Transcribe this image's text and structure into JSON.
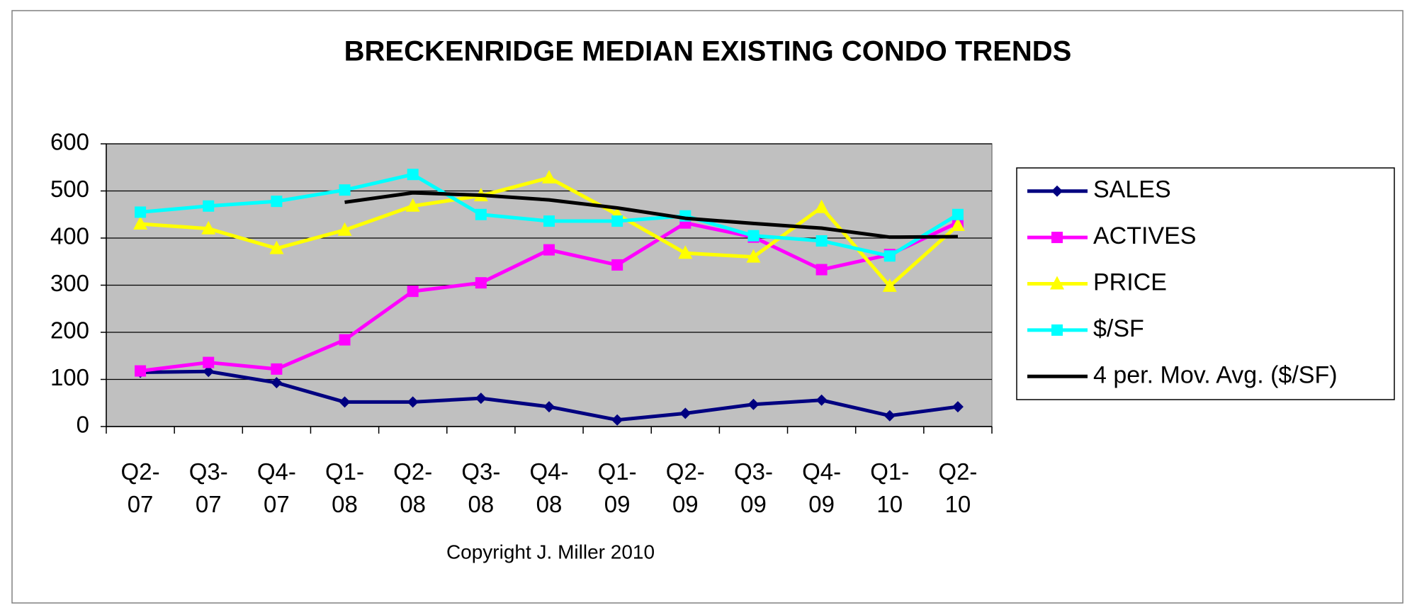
{
  "chart_data": {
    "type": "line",
    "title": "BRECKENRIDGE MEDIAN  EXISTING CONDO TRENDS",
    "annotation": "Copyright J. Miller 2010",
    "categories": [
      "Q2-07",
      "Q3-07",
      "Q4-07",
      "Q1-08",
      "Q2-08",
      "Q3-08",
      "Q4-08",
      "Q1-09",
      "Q2-09",
      "Q3-09",
      "Q4-09",
      "Q1-10",
      "Q2-10"
    ],
    "series": [
      {
        "name": "SALES",
        "color": "#000080",
        "marker": "diamond",
        "values": [
          115,
          117,
          93,
          52,
          52,
          60,
          42,
          14,
          28,
          47,
          56,
          23,
          42
        ]
      },
      {
        "name": "ACTIVES",
        "color": "#ff00ff",
        "marker": "square",
        "values": [
          118,
          136,
          122,
          184,
          287,
          305,
          375,
          343,
          432,
          402,
          333,
          365,
          433
        ]
      },
      {
        "name": "PRICE",
        "color": "#ffff00",
        "marker": "triangle",
        "values": [
          430,
          420,
          378,
          417,
          468,
          490,
          528,
          450,
          368,
          360,
          465,
          298,
          427
        ]
      },
      {
        "name": "$/SF",
        "color": "#00ffff",
        "marker": "square",
        "values": [
          455,
          468,
          478,
          502,
          535,
          450,
          436,
          436,
          447,
          405,
          394,
          362,
          450
        ]
      },
      {
        "name": "4 per. Mov. Avg. ($/SF)",
        "color": "#000000",
        "marker": "none",
        "values": [
          null,
          null,
          null,
          476,
          496,
          491,
          481,
          464,
          442,
          431,
          421,
          402,
          403
        ]
      }
    ],
    "ylim": [
      0,
      600
    ],
    "yticks": [
      0,
      100,
      200,
      300,
      400,
      500,
      600
    ],
    "grid": true,
    "legend": "right"
  }
}
